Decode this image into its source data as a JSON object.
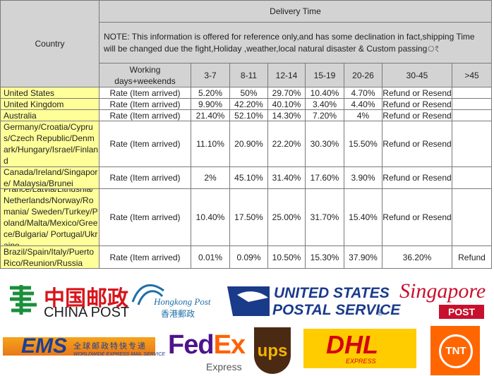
{
  "table": {
    "header": {
      "country": "Country",
      "delivery_time": "Delivery Time",
      "note": "NOTE: This information is offered for reference only,and has some declination in fact,shipping Time will be changed due the fight,Holiday ,weather,local natural disaster & Custom passingং",
      "columns": [
        "Working days+weekends",
        "3-7",
        "8-11",
        "12-14",
        "15-19",
        "20-26",
        "30-45",
        ">45"
      ]
    },
    "rows": [
      {
        "country": "United States",
        "label": "Rate (Item arrived)",
        "cells": [
          "5.20%",
          "50%",
          "29.70%",
          "10.40%",
          "4.70%",
          "Refund or Resend"
        ]
      },
      {
        "country": "United Kingdom",
        "label": "Rate (Item arrived)",
        "cells": [
          "9.90%",
          "42.20%",
          "40.10%",
          "3.40%",
          "4.40%",
          "Refund or Resend"
        ]
      },
      {
        "country": "Australia",
        "label": "Rate (Item arrived)",
        "cells": [
          "21.40%",
          "52.10%",
          "14.30%",
          "7.20%",
          "4%",
          "Refund or Resend"
        ]
      },
      {
        "country": "Germany/Croatia/Cyprus/Czech Republic/Denmark/Hungary/Israel/Finland",
        "label": "Rate (Item arrived)",
        "cells": [
          "11.10%",
          "20.90%",
          "22.20%",
          "30.30%",
          "15.50%",
          "Refund or Resend"
        ]
      },
      {
        "country": "Canada/Ireland/Singapore/ Malaysia/Brunei",
        "label": "Rate (Item arrived)",
        "cells": [
          "2%",
          "45.10%",
          "31.40%",
          "17.60%",
          "3.90%",
          "Refund or Resend"
        ]
      },
      {
        "country": "France/Latvia/Lithusnia/Netherlands/Norway/Romania/ Sweden/Turkey/Poland/Malta/Mexico/Greece/Bulgaria/ Portugal/Ukraine",
        "label": "Rate (Item arrived)",
        "cells": [
          "10.40%",
          "17.50%",
          "25.00%",
          "31.70%",
          "15.40%",
          "Refund or Resend"
        ]
      },
      {
        "country": "Brazil/Spain/Italy/Puerto Rico/Reunion/Russia",
        "label": "Rate (Item arrived)",
        "cells": [
          "0.01%",
          "0.09%",
          "10.50%",
          "15.30%",
          "37.90%",
          "36.20%",
          "Refund"
        ]
      }
    ]
  },
  "logos": {
    "china_post": {
      "chinese": "中国邮政",
      "english": "CHINA POST"
    },
    "hongkong_post": {
      "english": "Hongkong Post",
      "chinese": "香港郵政"
    },
    "usps": {
      "line1": "UNITED STATES",
      "line2": "POSTAL SERVICE",
      "mark": "®"
    },
    "singapore_post": {
      "script": "Singapore",
      "box": "POST"
    },
    "ems": {
      "mark": "EMS",
      "chinese": "全球邮政特快专递",
      "english": "WORLDWIDE EXPRESS MAIL SERVICE"
    },
    "fedex": {
      "fed": "Fed",
      "ex": "Ex",
      "sub": "Express"
    },
    "ups": {
      "mark": "ups"
    },
    "dhl": {
      "mark": "DHL",
      "sub": "EXPRESS"
    },
    "tnt": {
      "mark": "TNT"
    }
  }
}
